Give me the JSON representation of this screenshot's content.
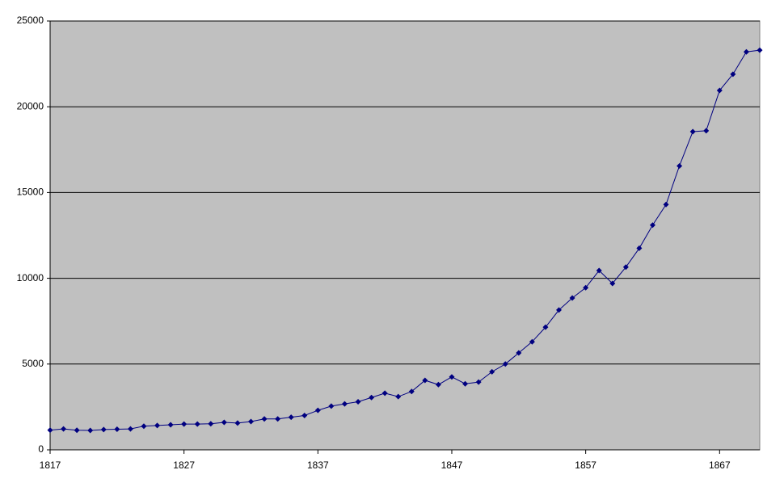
{
  "chart_data": {
    "type": "line",
    "x": [
      1817,
      1818,
      1819,
      1820,
      1821,
      1822,
      1823,
      1824,
      1825,
      1826,
      1827,
      1828,
      1829,
      1830,
      1831,
      1832,
      1833,
      1834,
      1835,
      1836,
      1837,
      1838,
      1839,
      1840,
      1841,
      1842,
      1843,
      1844,
      1845,
      1846,
      1847,
      1848,
      1849,
      1850,
      1851,
      1852,
      1853,
      1854,
      1855,
      1856,
      1857,
      1858,
      1859,
      1860,
      1861,
      1862,
      1863,
      1864,
      1865,
      1866,
      1867,
      1868,
      1869,
      1870
    ],
    "series": [
      {
        "color": "#000080",
        "values": [
          1150,
          1220,
          1140,
          1130,
          1180,
          1200,
          1220,
          1380,
          1420,
          1460,
          1500,
          1500,
          1520,
          1600,
          1560,
          1650,
          1800,
          1800,
          1900,
          2000,
          2300,
          2550,
          2680,
          2800,
          3050,
          3300,
          3100,
          3400,
          4050,
          3800,
          4250,
          3850,
          3950,
          4550,
          5000,
          5650,
          6300,
          7150,
          8150,
          8850,
          9450,
          10450,
          9700,
          10650,
          11750,
          13100,
          14300,
          16550,
          18550,
          18600,
          20950,
          21900,
          23200,
          23300
        ]
      }
    ],
    "xlim": [
      1817,
      1870
    ],
    "xticks": [
      1817,
      1827,
      1837,
      1847,
      1857,
      1867
    ],
    "ylim": [
      0,
      25000
    ],
    "yticks": [
      0,
      5000,
      10000,
      15000,
      20000,
      25000
    ],
    "grid": true
  }
}
